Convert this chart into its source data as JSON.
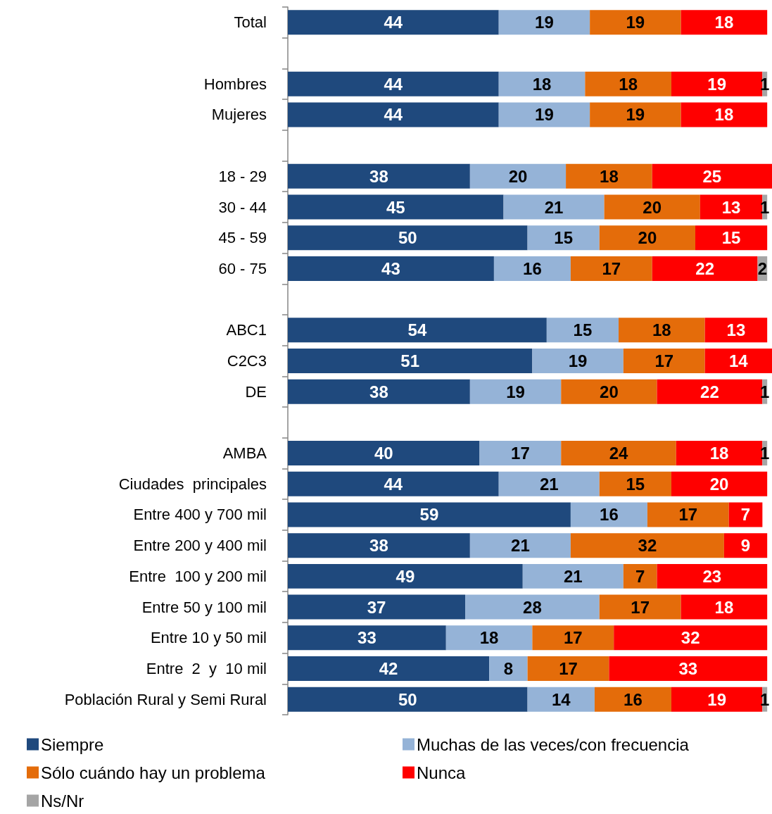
{
  "chart_data": {
    "type": "bar",
    "orientation": "horizontal",
    "stacked": true,
    "data_labels": true,
    "legend": "bottom",
    "categories": [
      "Total",
      null,
      "Hombres",
      "Mujeres",
      null,
      "18 - 29",
      "30 - 44",
      "45 - 59",
      "60 - 75",
      null,
      "ABC1",
      "C2C3",
      "DE",
      null,
      "AMBA",
      "Ciudades  principales",
      "Entre 400 y 700 mil",
      "Entre 200 y 400 mil",
      "Entre  100 y 200 mil",
      "Entre 50 y 100 mil",
      "Entre 10 y 50 mil",
      "Entre  2  y  10 mil",
      "Población Rural y Semi Rural"
    ],
    "series": [
      {
        "name": "Siempre",
        "color": "#1f497d",
        "values": [
          44,
          null,
          44,
          44,
          null,
          38,
          45,
          50,
          43,
          null,
          54,
          51,
          38,
          null,
          40,
          44,
          59,
          38,
          49,
          37,
          33,
          42,
          50
        ]
      },
      {
        "name": "Muchas de las veces/con frecuencia",
        "color": "#95b3d7",
        "values": [
          19,
          null,
          18,
          19,
          null,
          20,
          21,
          15,
          16,
          null,
          15,
          19,
          19,
          null,
          17,
          21,
          16,
          21,
          21,
          28,
          18,
          8,
          14
        ]
      },
      {
        "name": "Sólo cuándo hay un problema",
        "color": "#e46c0a",
        "values": [
          19,
          null,
          18,
          19,
          null,
          18,
          20,
          20,
          17,
          null,
          18,
          17,
          20,
          null,
          24,
          15,
          17,
          32,
          7,
          17,
          17,
          17,
          16
        ]
      },
      {
        "name": "Nunca",
        "color": "#ff0000",
        "values": [
          18,
          null,
          19,
          18,
          null,
          25,
          13,
          15,
          22,
          null,
          13,
          14,
          22,
          null,
          18,
          20,
          7,
          9,
          23,
          18,
          32,
          33,
          19
        ]
      },
      {
        "name": "Ns/Nr",
        "color": "#a5a5a5",
        "values": [
          null,
          null,
          1,
          null,
          null,
          null,
          1,
          null,
          2,
          null,
          null,
          null,
          1,
          null,
          1,
          null,
          null,
          null,
          null,
          null,
          null,
          null,
          1
        ]
      }
    ]
  }
}
